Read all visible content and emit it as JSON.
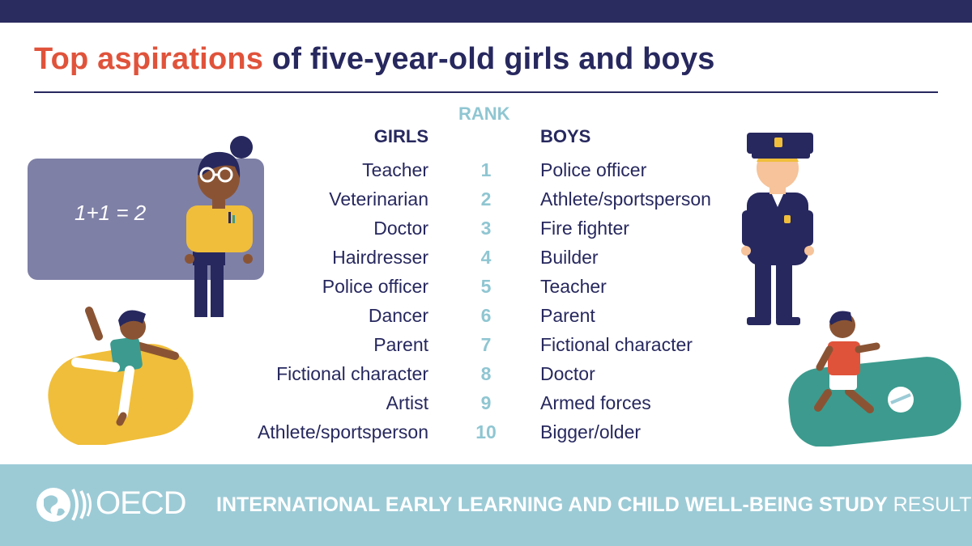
{
  "title": {
    "highlight": "Top aspirations",
    "rest": "of five-year-old girls and boys"
  },
  "headers": {
    "rank": "RANK",
    "girls": "GIRLS",
    "boys": "BOYS"
  },
  "rows": [
    {
      "rank": "1",
      "girls": "Teacher",
      "boys": "Police officer"
    },
    {
      "rank": "2",
      "girls": "Veterinarian",
      "boys": "Athlete/sportsperson"
    },
    {
      "rank": "3",
      "girls": "Doctor",
      "boys": "Fire fighter"
    },
    {
      "rank": "4",
      "girls": "Hairdresser",
      "boys": "Builder"
    },
    {
      "rank": "5",
      "girls": "Police officer",
      "boys": "Teacher"
    },
    {
      "rank": "6",
      "girls": "Dancer",
      "boys": "Parent"
    },
    {
      "rank": "7",
      "girls": "Parent",
      "boys": "Fictional character"
    },
    {
      "rank": "8",
      "girls": "Fictional character",
      "boys": "Doctor"
    },
    {
      "rank": "9",
      "girls": "Artist",
      "boys": "Armed forces"
    },
    {
      "rank": "10",
      "girls": "Athlete/sportsperson",
      "boys": "Bigger/older"
    }
  ],
  "illustrations": {
    "chalkboard_text": "1+1 = 2"
  },
  "footer": {
    "logo": "OECD",
    "study_bold": "INTERNATIONAL EARLY LEARNING AND CHILD WELL-BEING STUDY",
    "study_light": "RESULTS"
  },
  "colors": {
    "navy": "#27285e",
    "accent": "#e0533b",
    "rank": "#8fc6d2",
    "footer": "#9ccbd6"
  }
}
